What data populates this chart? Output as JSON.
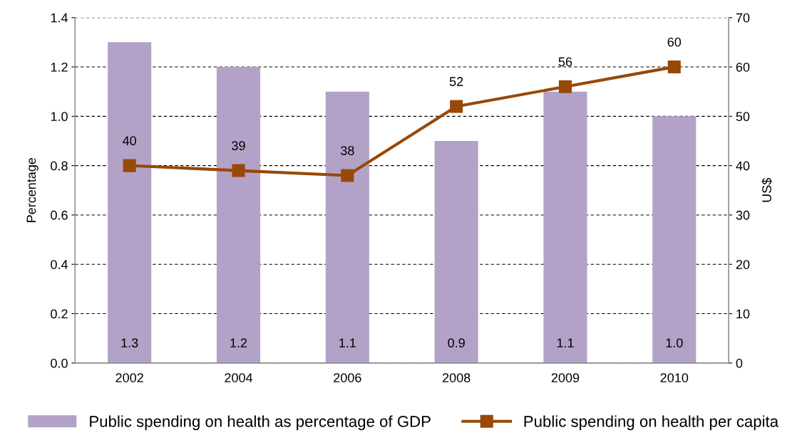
{
  "chart_data": {
    "type": "bar",
    "categories": [
      "2002",
      "2004",
      "2006",
      "2008",
      "2009",
      "2010"
    ],
    "ylabel": "Percentage",
    "y2label": "US$",
    "series": [
      {
        "name": "Public spending on health as percentage of GDP",
        "color": "#b3a2c7",
        "values": [
          1.3,
          1.2,
          1.1,
          0.9,
          1.1,
          1.0
        ],
        "value_labels": [
          "1.3",
          "1.2",
          "1.1",
          "0.9",
          "1.1",
          "1.0"
        ]
      },
      {
        "name": "Public spending on health per capita",
        "type": "line",
        "axis": "y2",
        "color": "#984807",
        "marker": "square",
        "line_style": "solid",
        "values": [
          40,
          39,
          38,
          52,
          56,
          60
        ],
        "value_labels": [
          "40",
          "39",
          "38",
          "52",
          "56",
          "60"
        ]
      }
    ],
    "ylim": [
      0,
      1.4
    ],
    "yticks": [
      {
        "value": 0,
        "label": "0.0"
      },
      0.2,
      0.4,
      0.6,
      0.8,
      {
        "value": 1,
        "label": "1.0"
      },
      1.2,
      1.4
    ],
    "y2lim": [
      0,
      70
    ],
    "y2ticks": [
      0,
      10,
      20,
      30,
      40,
      50,
      60,
      70
    ],
    "grid": "y",
    "legend": "bottom"
  }
}
